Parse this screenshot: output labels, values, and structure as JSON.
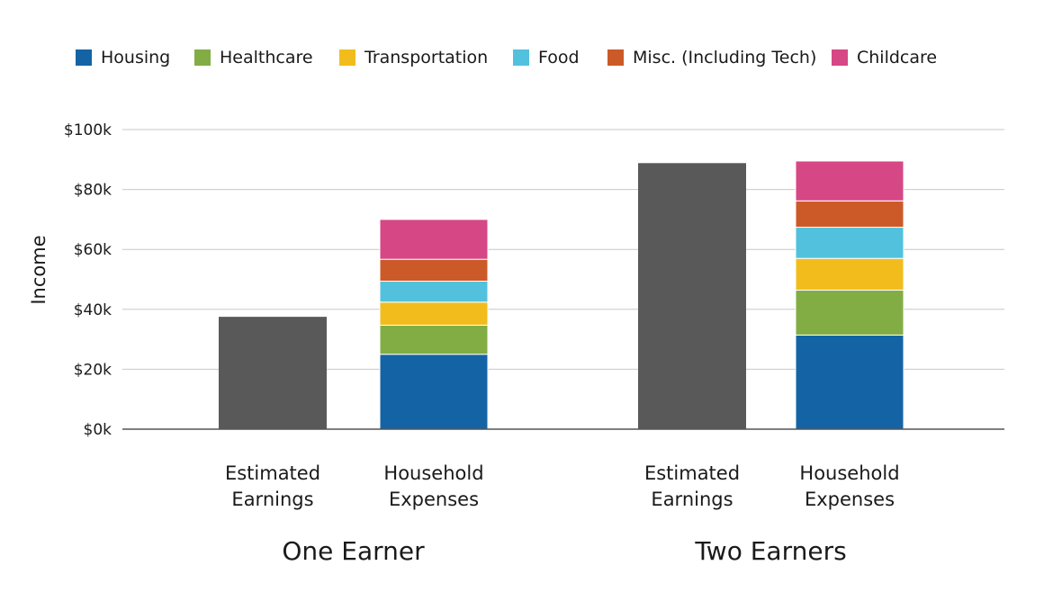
{
  "chart_data": {
    "type": "bar",
    "stacked": true,
    "ylabel": "Income",
    "ylim": [
      0,
      100000
    ],
    "y_ticks": [
      0,
      20000,
      40000,
      60000,
      80000,
      100000
    ],
    "y_tick_labels": [
      "$0k",
      "$20k",
      "$40k",
      "$60k",
      "$80k",
      "$100k"
    ],
    "grid": true,
    "legend_position": "top",
    "legend": [
      {
        "name": "Housing",
        "color": "#1464a5"
      },
      {
        "name": "Healthcare",
        "color": "#82ad45"
      },
      {
        "name": "Transportation",
        "color": "#f2bd1c"
      },
      {
        "name": "Food",
        "color": "#52c1dd"
      },
      {
        "name": "Misc. (Including Tech)",
        "color": "#cc5a28"
      },
      {
        "name": "Childcare",
        "color": "#d64785"
      }
    ],
    "earnings_color": "#595959",
    "groups": [
      {
        "label": "One Earner",
        "bars": [
          {
            "label_lines": [
              "Estimated",
              "Earnings"
            ],
            "kind": "earnings",
            "value": 37500
          },
          {
            "label_lines": [
              "Household",
              "Expenses"
            ],
            "kind": "expenses",
            "segments": [
              {
                "name": "Housing",
                "value": 25000
              },
              {
                "name": "Healthcare",
                "value": 9700
              },
              {
                "name": "Transportation",
                "value": 7700
              },
              {
                "name": "Food",
                "value": 7000
              },
              {
                "name": "Misc. (Including Tech)",
                "value": 7300
              },
              {
                "name": "Childcare",
                "value": 13300
              }
            ]
          }
        ]
      },
      {
        "label": "Two Earners",
        "bars": [
          {
            "label_lines": [
              "Estimated",
              "Earnings"
            ],
            "kind": "earnings",
            "value": 88800
          },
          {
            "label_lines": [
              "Household",
              "Expenses"
            ],
            "kind": "expenses",
            "segments": [
              {
                "name": "Housing",
                "value": 31400
              },
              {
                "name": "Healthcare",
                "value": 15000
              },
              {
                "name": "Transportation",
                "value": 10600
              },
              {
                "name": "Food",
                "value": 10400
              },
              {
                "name": "Misc. (Including Tech)",
                "value": 8800
              },
              {
                "name": "Childcare",
                "value": 13300
              }
            ]
          }
        ]
      }
    ]
  }
}
